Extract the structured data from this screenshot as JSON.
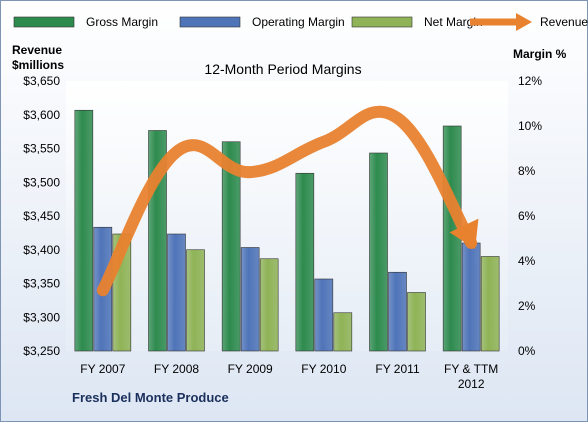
{
  "chart_data": {
    "type": "bar",
    "title": "12-Month Period Margins",
    "company": "Fresh Del Monte Produce",
    "left_axis_label": [
      "Revenue",
      "$millions"
    ],
    "right_axis_label": "Margin %",
    "categories": [
      [
        "FY 2007"
      ],
      [
        "FY 2008"
      ],
      [
        "FY 2009"
      ],
      [
        "FY 2010"
      ],
      [
        "FY 2011"
      ],
      [
        "FY & TTM",
        "2012"
      ]
    ],
    "left_axis": {
      "ylim": [
        3250,
        3650
      ],
      "ticks": [
        3250,
        3300,
        3350,
        3400,
        3450,
        3500,
        3550,
        3600,
        3650
      ],
      "tick_labels": [
        "$3,250",
        "$3,300",
        "$3,350",
        "$3,400",
        "$3,450",
        "$3,500",
        "$3,550",
        "$3,600",
        "$3,650"
      ]
    },
    "right_axis": {
      "ylim": [
        0,
        12
      ],
      "ticks": [
        0,
        2,
        4,
        6,
        8,
        10,
        12
      ],
      "tick_labels": [
        "0%",
        "2%",
        "4%",
        "6%",
        "8%",
        "10%",
        "12%"
      ]
    },
    "series": [
      {
        "name": "Gross Margin",
        "kind": "bar",
        "axis": "right",
        "color": "#2e8b4e",
        "values": [
          10.7,
          9.8,
          9.3,
          7.9,
          8.8,
          10.0
        ]
      },
      {
        "name": "Operating Margin",
        "kind": "bar",
        "axis": "right",
        "color": "#4f74b8",
        "values": [
          5.5,
          5.2,
          4.6,
          3.2,
          3.5,
          4.8
        ]
      },
      {
        "name": "Net Margin",
        "kind": "bar",
        "axis": "right",
        "color": "#8fb356",
        "values": [
          5.2,
          4.5,
          4.1,
          1.7,
          2.6,
          4.2
        ]
      },
      {
        "name": "Revenues",
        "kind": "line-arrow",
        "axis": "left",
        "color": "#e8822f",
        "values": [
          3340,
          3545,
          3515,
          3560,
          3595,
          3410
        ]
      }
    ],
    "legend_position": "top",
    "grid": false
  }
}
